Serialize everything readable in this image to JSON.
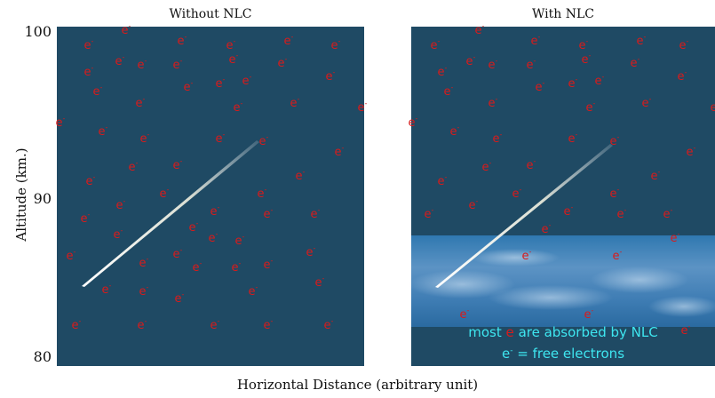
{
  "panels": {
    "left_title": "Without NLC",
    "right_title": "With NLC"
  },
  "axes": {
    "y_label": "Altitude (km.)",
    "x_label": "Horizontal Distance (arbitrary unit)",
    "y_ticks": [
      "100",
      "90",
      "80"
    ]
  },
  "electron": {
    "symbol": "e",
    "superscript": "-"
  },
  "legend": {
    "most": "most",
    "absorbed": "are absorbed by NLC",
    "definition": "= free electrons"
  },
  "colors": {
    "panel_bg": "#1f4a64",
    "electron": "#d81b1b",
    "nlc_band": "#3d7eb3",
    "legend_text": "#3ee6f0",
    "meteor": "#ffffff"
  }
}
